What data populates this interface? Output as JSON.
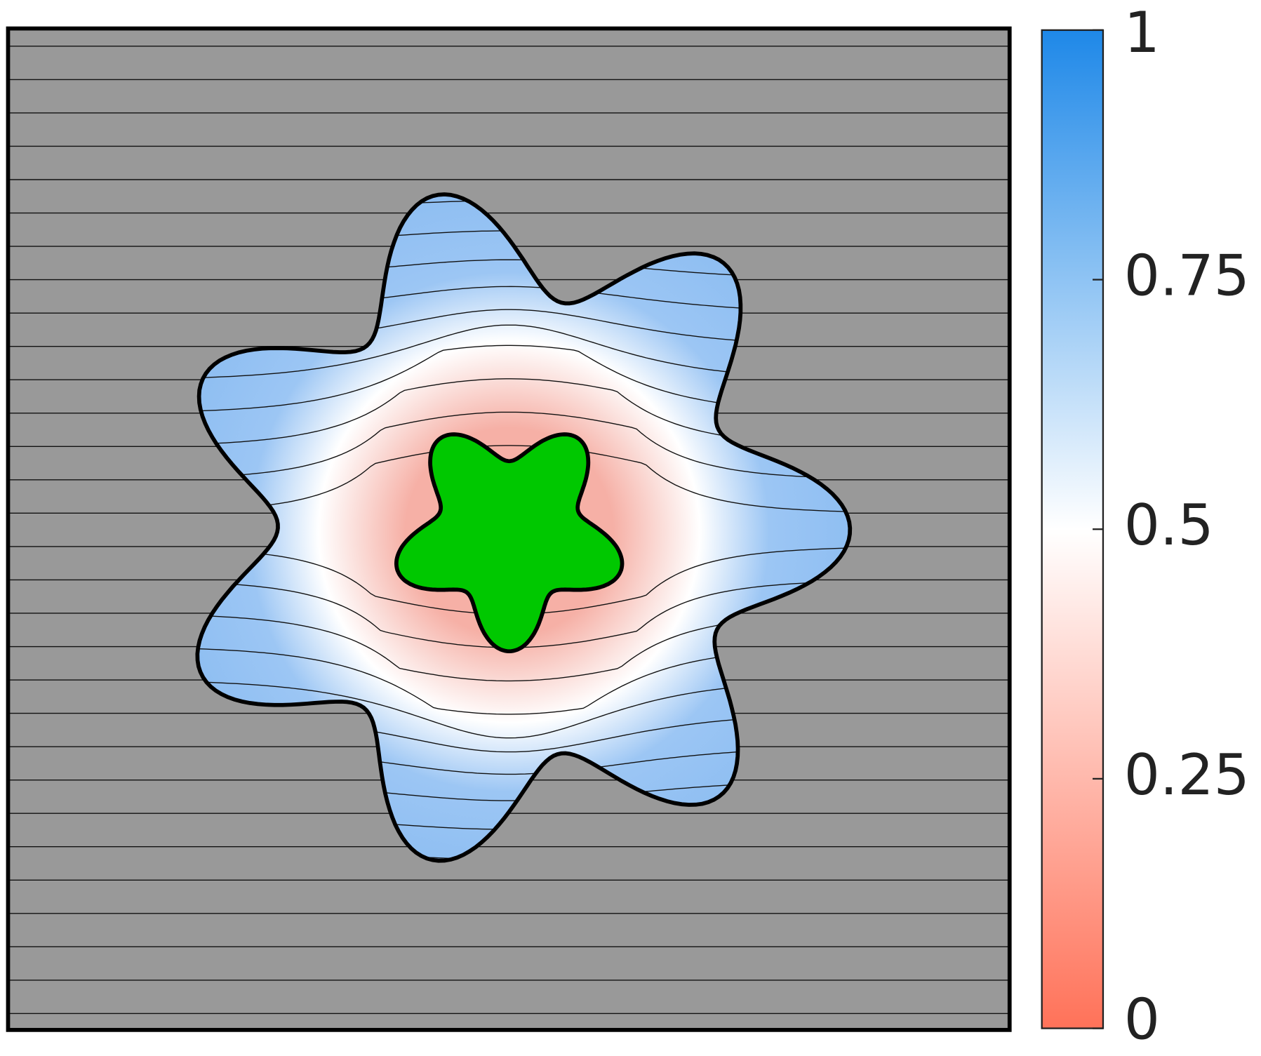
{
  "chart_data": {
    "type": "heatmap",
    "colorbar": {
      "clim": [
        0,
        1
      ],
      "ticks": [
        0,
        0.25,
        0.5,
        0.75,
        1
      ],
      "colors": [
        "#ff7259",
        "#ffffff",
        "#1e88e8"
      ]
    },
    "background_color": "#999999",
    "obstacle_color": "#00c800"
  }
}
